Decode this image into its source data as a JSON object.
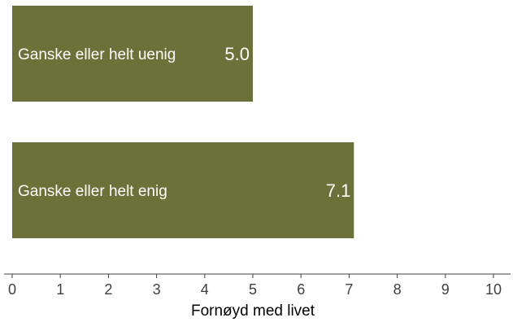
{
  "chart_data": {
    "type": "bar",
    "orientation": "horizontal",
    "categories": [
      "Ganske eller helt uenig",
      "Ganske eller helt enig"
    ],
    "values": [
      5.0,
      7.1
    ],
    "value_labels": [
      "5.0",
      "7.1"
    ],
    "title": "",
    "xlabel": "Fornøyd med livet",
    "ylabel": "",
    "xlim": [
      0,
      10
    ],
    "x_ticks": [
      "0",
      "1",
      "2",
      "3",
      "4",
      "5",
      "6",
      "7",
      "8",
      "9",
      "10"
    ],
    "grid": false,
    "legend": "none",
    "colors": {
      "bar": "#6b7139",
      "bar_text": "#ffffff",
      "axis": "#404040"
    }
  }
}
